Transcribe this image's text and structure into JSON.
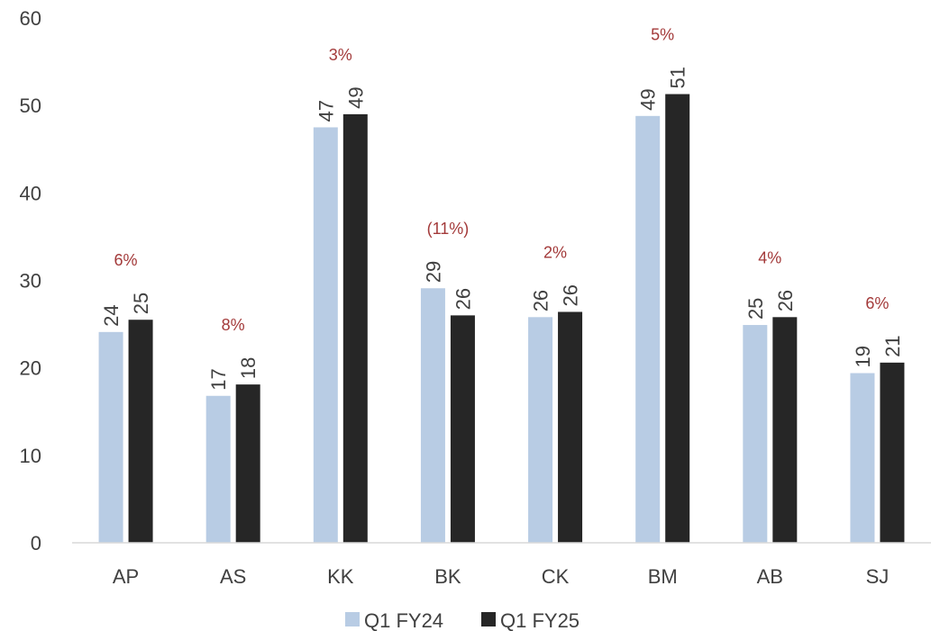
{
  "chart_data": {
    "type": "bar",
    "categories": [
      "AP",
      "AS",
      "KK",
      "BK",
      "CK",
      "BM",
      "AB",
      "SJ"
    ],
    "series": [
      {
        "name": "Q1 FY24",
        "values": [
          24.1,
          16.8,
          47.5,
          29.1,
          25.8,
          48.8,
          24.9,
          19.4
        ],
        "labels": [
          "24",
          "17",
          "47",
          "29",
          "26",
          "49",
          "25",
          "19"
        ],
        "color": "#b8cce4"
      },
      {
        "name": "Q1 FY25",
        "values": [
          25.5,
          18.1,
          49.0,
          26.0,
          26.4,
          51.3,
          25.8,
          20.6
        ],
        "labels": [
          "25",
          "18",
          "49",
          "26",
          "26",
          "51",
          "26",
          "21"
        ],
        "color": "#262626"
      }
    ],
    "growth_labels": [
      "6%",
      "8%",
      "3%",
      "(11%)",
      "2%",
      "5%",
      "4%",
      "6%"
    ],
    "growth_color": "#a33a3a",
    "yticks": [
      "0",
      "10",
      "20",
      "30",
      "40",
      "50",
      "60"
    ],
    "ylim": [
      0,
      60
    ],
    "grid": false,
    "legend": "bottom"
  }
}
